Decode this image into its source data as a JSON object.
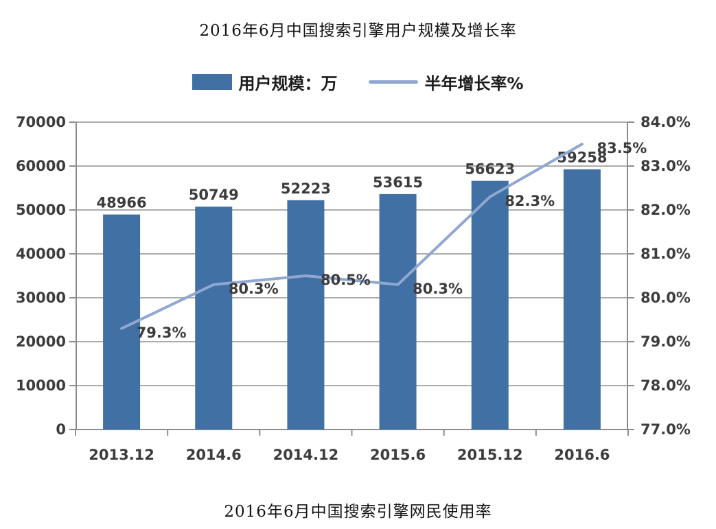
{
  "page": {
    "title": "2016年6月中国搜索引擎用户规模及增长率",
    "caption": "2016年6月中国搜索引擎网民使用率"
  },
  "legend": {
    "bar_label": "用户规模：万",
    "line_label": "半年增长率%"
  },
  "colors": {
    "bar": "#4070a4",
    "line": "#90a7d2",
    "grid": "#acacac",
    "axis": "#8c8c8c",
    "label_text": "#3c3c3c"
  },
  "chart_data": {
    "type": "bar",
    "subtype": "bar-line-combo",
    "title": "2016年6月中国搜索引擎用户规模及增长率",
    "categories": [
      "2013.12",
      "2014.6",
      "2014.12",
      "2015.6",
      "2015.12",
      "2016.6"
    ],
    "series": [
      {
        "name": "用户规模：万",
        "type": "bar",
        "axis": "left",
        "values": [
          48966,
          50749,
          52223,
          53615,
          56623,
          59258
        ],
        "labels": [
          "48966",
          "50749",
          "52223",
          "53615",
          "56623",
          "59258"
        ],
        "color": "#4070a4"
      },
      {
        "name": "半年增长率%",
        "type": "line",
        "axis": "right",
        "values": [
          79.3,
          80.3,
          80.5,
          80.3,
          82.3,
          83.5
        ],
        "labels": [
          "79.3%",
          "80.3%",
          "80.5%",
          "80.3%",
          "82.3%",
          "83.5%"
        ],
        "color": "#90a7d2"
      }
    ],
    "left_axis": {
      "min": 0,
      "max": 70000,
      "step": 10000,
      "ticks": [
        "0",
        "10000",
        "20000",
        "30000",
        "40000",
        "50000",
        "60000",
        "70000"
      ]
    },
    "right_axis": {
      "min": 77,
      "max": 84,
      "step": 1,
      "ticks": [
        "77.0%",
        "78.0%",
        "79.0%",
        "80.0%",
        "81.0%",
        "82.0%",
        "83.0%",
        "84.0%"
      ]
    },
    "grid": true,
    "legend_position": "top"
  }
}
